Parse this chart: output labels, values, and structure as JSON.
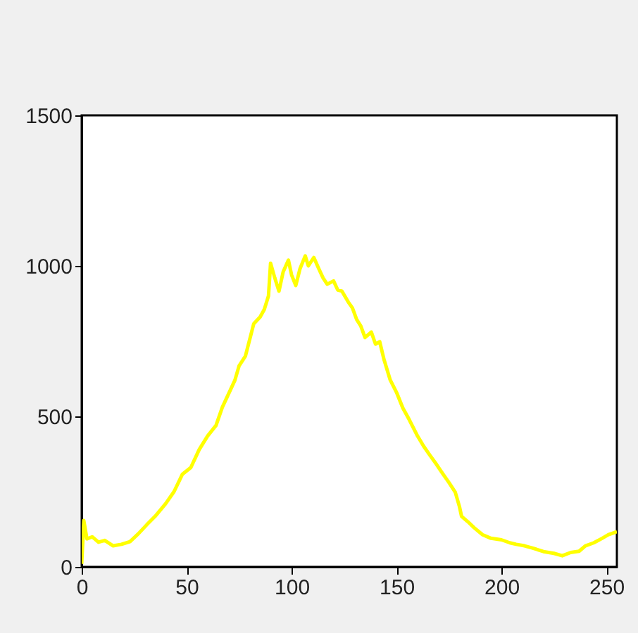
{
  "chart_data": {
    "type": "line",
    "color": "#ffff00",
    "x": [
      0,
      1,
      2.5,
      5,
      8,
      11,
      15,
      19,
      23,
      27,
      31,
      35,
      40,
      44,
      48,
      52,
      56,
      60,
      64,
      67,
      70,
      73,
      75,
      78,
      82,
      85,
      87,
      89,
      90,
      92,
      94,
      96,
      98.5,
      100,
      102,
      104,
      106.5,
      108,
      110.6,
      113,
      115,
      117,
      120,
      122,
      124,
      127,
      129,
      131,
      133,
      135,
      138,
      140,
      142,
      144,
      147,
      150,
      153,
      156,
      160,
      163,
      166,
      169,
      172,
      175,
      178,
      180,
      181,
      184,
      187,
      191,
      195,
      200,
      204,
      207,
      211,
      215,
      220,
      225,
      229,
      233,
      237,
      240,
      244,
      248,
      251,
      253,
      255
    ],
    "values": [
      10,
      154,
      93,
      100,
      82,
      88,
      70,
      75,
      84,
      110,
      140,
      168,
      210,
      250,
      308,
      330,
      390,
      435,
      470,
      530,
      575,
      620,
      668,
      700,
      808,
      830,
      855,
      900,
      1009,
      960,
      916,
      980,
      1019,
      970,
      935,
      990,
      1033,
      1000,
      1028,
      990,
      960,
      939,
      950,
      920,
      916,
      880,
      860,
      822,
      800,
      762,
      780,
      740,
      748,
      690,
      621,
      580,
      528,
      490,
      435,
      400,
      370,
      341,
      310,
      280,
      248,
      200,
      168,
      150,
      130,
      107,
      95,
      90,
      80,
      75,
      70,
      62,
      51,
      45,
      37,
      48,
      52,
      70,
      80,
      95,
      107,
      112,
      117
    ],
    "xlim": [
      0,
      255
    ],
    "xticks": [
      0,
      50,
      100,
      150,
      200,
      250
    ],
    "ylim": [
      0,
      1500
    ],
    "yticks": [
      0,
      500,
      1000,
      1500
    ],
    "grid": false
  }
}
